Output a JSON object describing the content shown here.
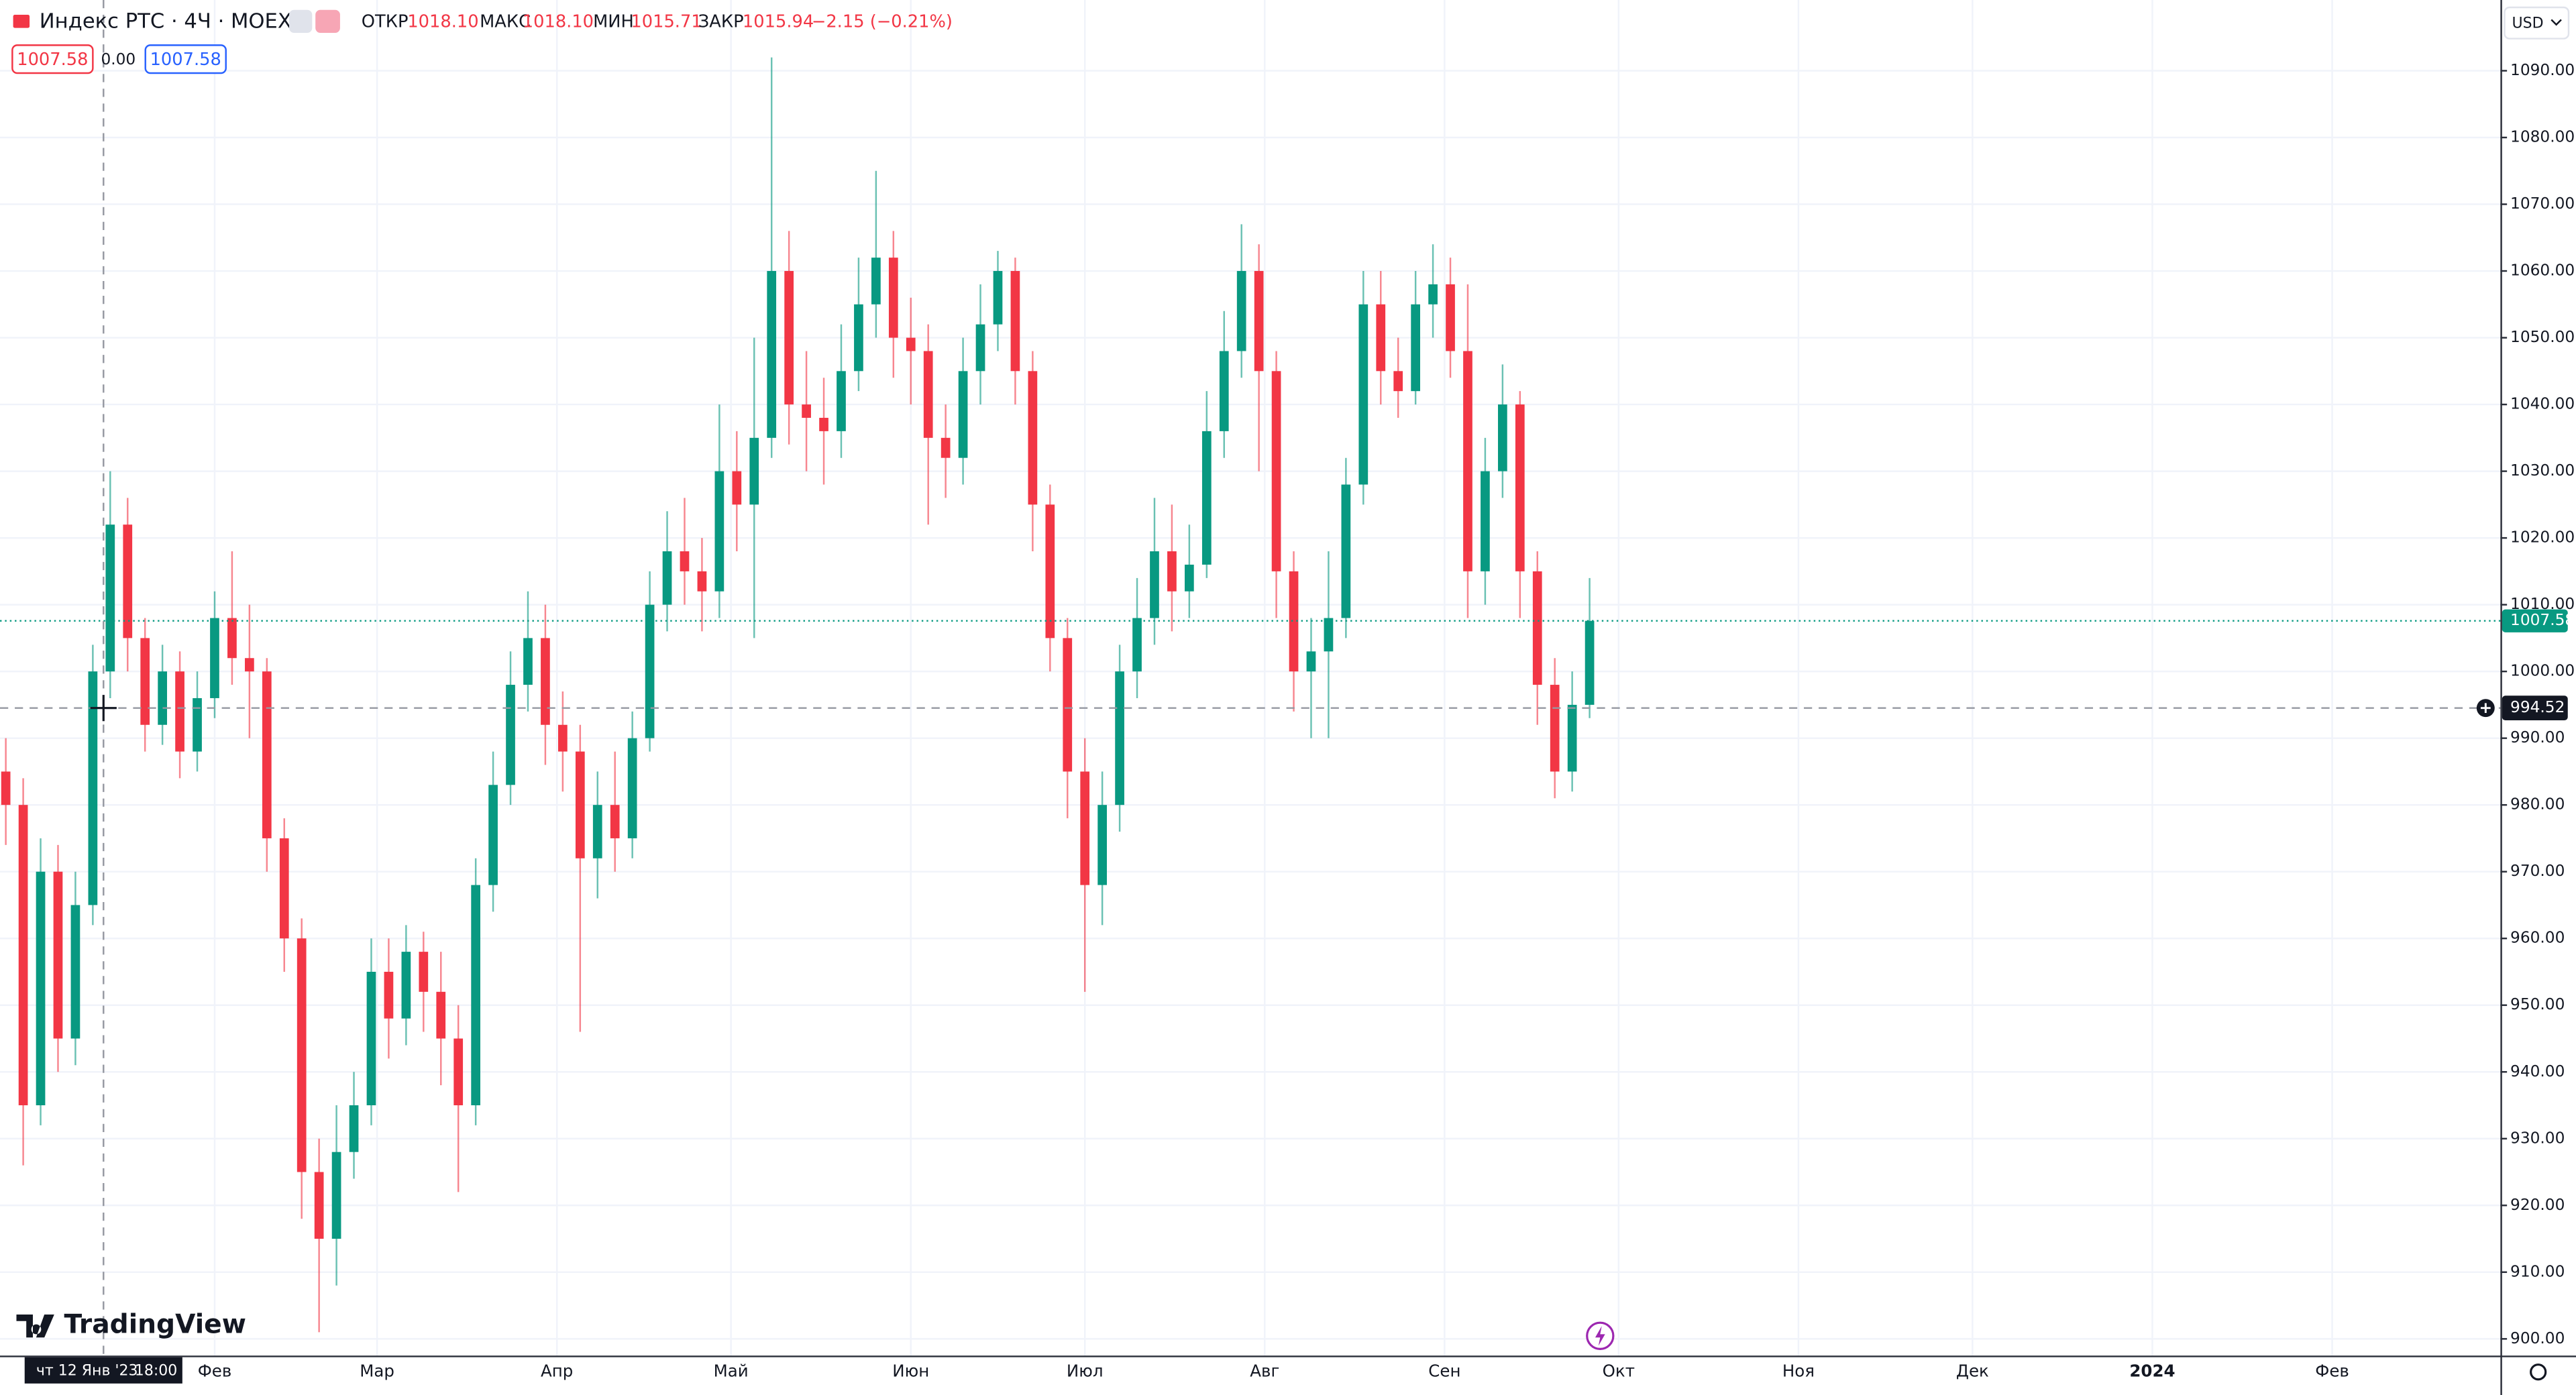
{
  "header": {
    "symbol": "Индекс РТС · 4Ч · MOEX",
    "open_label": "ОТКР",
    "open": "1018.10",
    "high_label": "МАКС",
    "high": "1018.10",
    "low_label": "МИН",
    "low": "1015.71",
    "close_label": "ЗАКР",
    "close": "1015.94",
    "change": "−2.15 (−0.21%)",
    "sell": "1007.58",
    "spread": "0.00",
    "buy": "1007.58",
    "currency": "USD",
    "logo": "TradingView"
  },
  "chart_data": {
    "type": "candlestick",
    "series": [
      {
        "up_color": "#089981",
        "down_color": "#f23645",
        "x": [
          "2022-12-27",
          "2022-12-30",
          "2023-01-02",
          "2023-01-05",
          "2023-01-08",
          "2023-01-11",
          "2023-01-14",
          "2023-01-17",
          "2023-01-20",
          "2023-01-23",
          "2023-01-26",
          "2023-01-29",
          "2023-02-01",
          "2023-02-04",
          "2023-02-07",
          "2023-02-10",
          "2023-02-13",
          "2023-02-16",
          "2023-02-19",
          "2023-02-22",
          "2023-02-25",
          "2023-02-28",
          "2023-03-03",
          "2023-03-06",
          "2023-03-09",
          "2023-03-12",
          "2023-03-15",
          "2023-03-18",
          "2023-03-21",
          "2023-03-24",
          "2023-03-27",
          "2023-03-30",
          "2023-04-02",
          "2023-04-05",
          "2023-04-08",
          "2023-04-11",
          "2023-04-14",
          "2023-04-17",
          "2023-04-20",
          "2023-04-23",
          "2023-04-26",
          "2023-04-29",
          "2023-05-02",
          "2023-05-05",
          "2023-05-08",
          "2023-05-11",
          "2023-05-14",
          "2023-05-17",
          "2023-05-20",
          "2023-05-23",
          "2023-05-26",
          "2023-05-29",
          "2023-06-01",
          "2023-06-04",
          "2023-06-07",
          "2023-06-10",
          "2023-06-13",
          "2023-06-16",
          "2023-06-19",
          "2023-06-22",
          "2023-06-25",
          "2023-06-28",
          "2023-07-01",
          "2023-07-04",
          "2023-07-07",
          "2023-07-10",
          "2023-07-13",
          "2023-07-16",
          "2023-07-19",
          "2023-07-22",
          "2023-07-25",
          "2023-07-28",
          "2023-07-31",
          "2023-08-03",
          "2023-08-06",
          "2023-08-09",
          "2023-08-12",
          "2023-08-15",
          "2023-08-18",
          "2023-08-21",
          "2023-08-24",
          "2023-08-27",
          "2023-08-30",
          "2023-09-02",
          "2023-09-05",
          "2023-09-08",
          "2023-09-11",
          "2023-09-14",
          "2023-09-17",
          "2023-09-20",
          "2023-09-23",
          "2023-09-26"
        ],
        "open": [
          985,
          980,
          935,
          970,
          945,
          965,
          1000,
          1022,
          1005,
          992,
          1000,
          988,
          996,
          1008,
          1002,
          1000,
          975,
          960,
          925,
          915,
          928,
          935,
          955,
          948,
          958,
          952,
          945,
          935,
          968,
          983,
          998,
          1005,
          992,
          988,
          972,
          980,
          975,
          990,
          1010,
          1018,
          1015,
          1012,
          1030,
          1025,
          1035,
          1060,
          1040,
          1038,
          1036,
          1045,
          1055,
          1062,
          1050,
          1048,
          1035,
          1032,
          1045,
          1052,
          1060,
          1045,
          1025,
          1005,
          985,
          968,
          980,
          1000,
          1008,
          1018,
          1012,
          1016,
          1036,
          1048,
          1060,
          1045,
          1015,
          1000,
          1003,
          1008,
          1028,
          1055,
          1045,
          1042,
          1055,
          1058,
          1048,
          1015,
          1030,
          1040,
          1015,
          998,
          985,
          995
        ],
        "high": [
          990,
          984,
          975,
          974,
          970,
          1004,
          1030,
          1026,
          1008,
          1004,
          1003,
          1000,
          1012,
          1018,
          1010,
          1002,
          978,
          963,
          930,
          935,
          940,
          960,
          960,
          962,
          961,
          958,
          950,
          972,
          988,
          1003,
          1012,
          1010,
          997,
          992,
          985,
          988,
          994,
          1015,
          1024,
          1026,
          1020,
          1040,
          1036,
          1050,
          1092,
          1066,
          1048,
          1044,
          1052,
          1062,
          1075,
          1066,
          1056,
          1052,
          1040,
          1050,
          1058,
          1063,
          1062,
          1048,
          1028,
          1008,
          990,
          985,
          1004,
          1014,
          1026,
          1025,
          1022,
          1042,
          1054,
          1067,
          1064,
          1048,
          1018,
          1008,
          1018,
          1032,
          1060,
          1060,
          1050,
          1060,
          1064,
          1062,
          1058,
          1035,
          1046,
          1042,
          1018,
          1002,
          1000,
          1014
        ],
        "low": [
          974,
          926,
          932,
          940,
          941,
          962,
          996,
          1000,
          988,
          989,
          984,
          985,
          993,
          998,
          990,
          970,
          955,
          918,
          901,
          908,
          924,
          932,
          942,
          944,
          946,
          938,
          922,
          932,
          964,
          980,
          994,
          986,
          982,
          946,
          966,
          970,
          972,
          988,
          1006,
          1010,
          1006,
          1008,
          1018,
          1005,
          1032,
          1034,
          1030,
          1028,
          1032,
          1042,
          1050,
          1044,
          1040,
          1022,
          1026,
          1028,
          1040,
          1048,
          1040,
          1018,
          1000,
          978,
          952,
          962,
          976,
          996,
          1004,
          1006,
          1008,
          1014,
          1032,
          1044,
          1030,
          1008,
          994,
          990,
          990,
          1005,
          1025,
          1040,
          1038,
          1040,
          1050,
          1044,
          1008,
          1010,
          1026,
          1008,
          992,
          981,
          982,
          993
        ],
        "close": [
          980,
          935,
          970,
          945,
          965,
          1000,
          1022,
          1005,
          992,
          1000,
          988,
          996,
          1008,
          1002,
          1000,
          975,
          960,
          925,
          915,
          928,
          935,
          955,
          948,
          958,
          952,
          945,
          935,
          968,
          983,
          998,
          1005,
          992,
          988,
          972,
          980,
          975,
          990,
          1010,
          1018,
          1015,
          1012,
          1030,
          1025,
          1035,
          1060,
          1040,
          1038,
          1036,
          1045,
          1055,
          1062,
          1050,
          1048,
          1035,
          1032,
          1045,
          1052,
          1060,
          1045,
          1025,
          1005,
          985,
          968,
          980,
          1000,
          1008,
          1018,
          1012,
          1016,
          1036,
          1048,
          1060,
          1045,
          1015,
          1000,
          1003,
          1008,
          1028,
          1055,
          1045,
          1042,
          1055,
          1058,
          1048,
          1015,
          1030,
          1040,
          1015,
          998,
          985,
          995,
          1007.58
        ]
      }
    ],
    "xlim": [
      "2022-12-26",
      "2024-03-01"
    ],
    "xticks": [
      {
        "value": "2023-02-01",
        "label": "Фев"
      },
      {
        "value": "2023-03-01",
        "label": "Мар"
      },
      {
        "value": "2023-04-01",
        "label": "Апр"
      },
      {
        "value": "2023-05-01",
        "label": "Май"
      },
      {
        "value": "2023-06-01",
        "label": "Июн"
      },
      {
        "value": "2023-07-01",
        "label": "Июл"
      },
      {
        "value": "2023-08-01",
        "label": "Авг"
      },
      {
        "value": "2023-09-01",
        "label": "Сен"
      },
      {
        "value": "2023-10-01",
        "label": "Окт"
      },
      {
        "value": "2023-11-01",
        "label": "Ноя"
      },
      {
        "value": "2023-12-01",
        "label": "Дек"
      },
      {
        "value": "2024-01-01",
        "label": "2024"
      },
      {
        "value": "2024-02-01",
        "label": "Фев"
      }
    ],
    "ylim": [
      897.5,
      1100.6
    ],
    "yticks": [
      {
        "value": 900,
        "label": "900.00"
      },
      {
        "value": 910,
        "label": "910.00"
      },
      {
        "value": 920,
        "label": "920.00"
      },
      {
        "value": 930,
        "label": "930.00"
      },
      {
        "value": 940,
        "label": "940.00"
      },
      {
        "value": 950,
        "label": "950.00"
      },
      {
        "value": 960,
        "label": "960.00"
      },
      {
        "value": 970,
        "label": "970.00"
      },
      {
        "value": 980,
        "label": "980.00"
      },
      {
        "value": 990,
        "label": "990.00"
      },
      {
        "value": 1000,
        "label": "1000.00"
      },
      {
        "value": 1010,
        "label": "1010.00"
      },
      {
        "value": 1020,
        "label": "1020.00"
      },
      {
        "value": 1030,
        "label": "1030.00"
      },
      {
        "value": 1040,
        "label": "1040.00"
      },
      {
        "value": 1050,
        "label": "1050.00"
      },
      {
        "value": 1060,
        "label": "1060.00"
      },
      {
        "value": 1070,
        "label": "1070.00"
      },
      {
        "value": 1080,
        "label": "1080.00"
      },
      {
        "value": 1090,
        "label": "1090.00"
      }
    ],
    "grid": true,
    "last_price": 1007.58,
    "last_price_color": "#089981",
    "crosshair": {
      "price": 994.52,
      "date_label": "чт 12 Янв '23",
      "time_label": "18:00"
    }
  }
}
